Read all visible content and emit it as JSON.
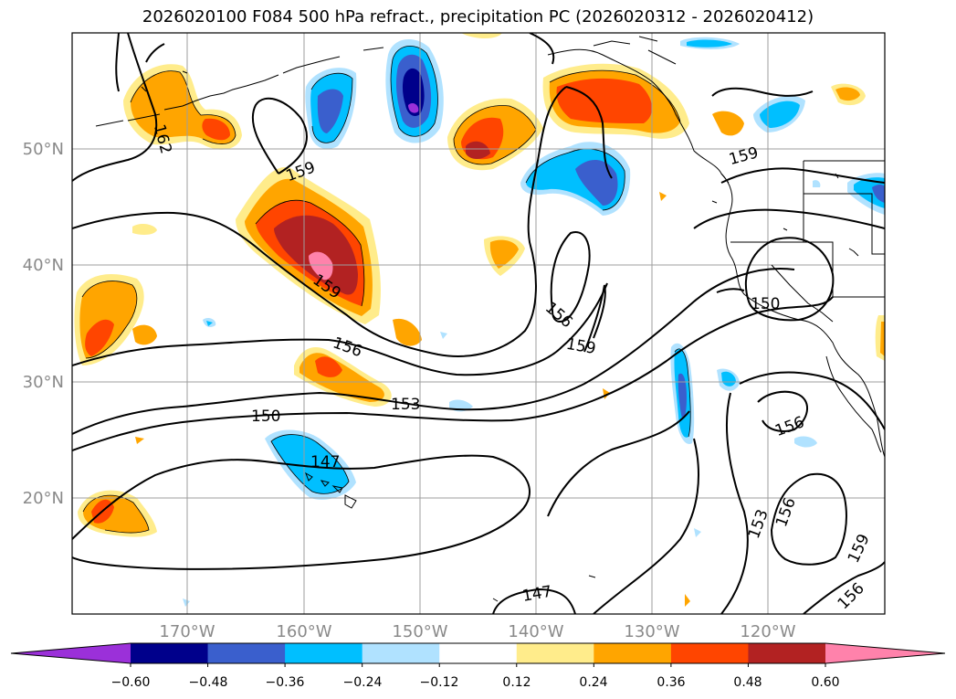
{
  "title": "2026020100 F084 500 hPa refract., precipitation PC (2026020312 - 2026020412)",
  "lat_labels": [
    "50°N",
    "40°N",
    "30°N",
    "20°N"
  ],
  "lon_labels": [
    "170°W",
    "160°W",
    "150°W",
    "140°W",
    "130°W",
    "120°W"
  ],
  "contour_labels": [
    "162",
    "159",
    "159",
    "159",
    "156",
    "153",
    "150",
    "147",
    "156",
    "159",
    "150",
    "156",
    "153",
    "156",
    "159",
    "156",
    "147"
  ],
  "colorbar": {
    "tick_labels": [
      "−0.60",
      "−0.48",
      "−0.36",
      "−0.24",
      "−0.12",
      "0.12",
      "0.24",
      "0.36",
      "0.48",
      "0.60"
    ],
    "colors": [
      "#9b30d9",
      "#00008b",
      "#3a5fcd",
      "#00bfff",
      "#b0e2ff",
      "#ffffff",
      "#ffec8b",
      "#ffa500",
      "#ff4500",
      "#b22222",
      "#ff82ab",
      "#ff82ab"
    ]
  },
  "colors": {
    "neg_strong": "#00008b",
    "neg_mid": "#3a5fcd",
    "neg_light": "#00bfff",
    "neg_pale": "#b0e2ff",
    "pos_pale": "#ffec8b",
    "pos_light": "#ffa500",
    "pos_mid": "#ff4500",
    "pos_strong": "#b22222",
    "pos_max": "#ff82ab",
    "neg_max": "#9b30d9"
  }
}
